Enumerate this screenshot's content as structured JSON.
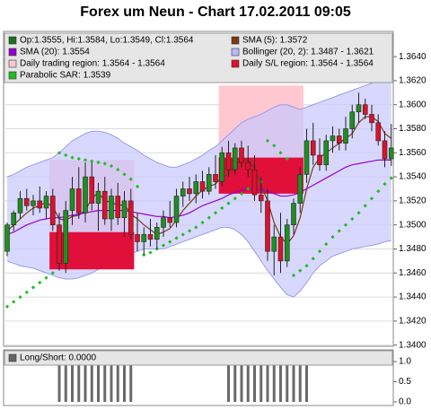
{
  "title": "Forex um Neun - Chart 17.02.2011 09:05",
  "chart_data": [
    {
      "type": "candlestick",
      "ylim": [
        1.3399,
        1.3661
      ],
      "yticks": [
        {
          "value": 1.34,
          "label": "1.3400"
        },
        {
          "value": 1.342,
          "label": "1.3420"
        },
        {
          "value": 1.344,
          "label": "1.3440"
        },
        {
          "value": 1.346,
          "label": "1.3460"
        },
        {
          "value": 1.348,
          "label": "1.3480"
        },
        {
          "value": 1.35,
          "label": "1.3500"
        },
        {
          "value": 1.352,
          "label": "1.3520"
        },
        {
          "value": 1.354,
          "label": "1.3540"
        },
        {
          "value": 1.356,
          "label": "1.3560"
        },
        {
          "value": 1.358,
          "label": "1.3580"
        },
        {
          "value": 1.36,
          "label": "1.3600"
        },
        {
          "value": 1.362,
          "label": "1.3620"
        },
        {
          "value": 1.364,
          "label": "1.3640"
        }
      ],
      "grid": true,
      "up_color": "#1f8f1f",
      "down_color": "#e0102a",
      "legend": [
        {
          "label": "Op:1.3555, Hi:1.3584, Lo:1.3549, Cl:1.3564",
          "color": "#1f6f1f"
        },
        {
          "label": "SMA (5): 1.3572",
          "color": "#7a3a10"
        },
        {
          "label": "SMA (20): 1.3554",
          "color": "#9900cc"
        },
        {
          "label": "Bollinger (20, 2): 1.3487 - 1.3621",
          "color": "#b8b8ff"
        },
        {
          "label": "Daily trading region: 1.3564 - 1.3564",
          "color": "#ffc8d0"
        },
        {
          "label": "Daily S/L region: 1.3564 - 1.3564",
          "color": "#e0102a"
        },
        {
          "label": "Parabolic SAR: 1.3539",
          "color": "#22bb22"
        }
      ],
      "open": [
        1.3478,
        1.35,
        1.351,
        1.3522,
        1.3516,
        1.352,
        1.3514,
        1.3524,
        1.35,
        1.3468,
        1.3512,
        1.353,
        1.351,
        1.354,
        1.3518,
        1.3528,
        1.3505,
        1.3524,
        1.3506,
        1.352,
        1.3492,
        1.3486,
        1.3492,
        1.3488,
        1.3498,
        1.3506,
        1.3502,
        1.3524,
        1.353,
        1.3526,
        1.3536,
        1.3528,
        1.3542,
        1.3536,
        1.356,
        1.3546,
        1.3564,
        1.3552,
        1.3546,
        1.3525,
        1.352,
        1.3478,
        1.349,
        1.347,
        1.35,
        1.3518,
        1.3542,
        1.357,
        1.3558,
        1.355,
        1.357,
        1.3574,
        1.3568,
        1.358,
        1.3594,
        1.36,
        1.3592,
        1.3585,
        1.357,
        1.3555
      ],
      "high": [
        1.3502,
        1.3512,
        1.3528,
        1.353,
        1.3525,
        1.3532,
        1.3528,
        1.353,
        1.351,
        1.352,
        1.354,
        1.3548,
        1.3552,
        1.3552,
        1.3535,
        1.354,
        1.353,
        1.3535,
        1.3528,
        1.353,
        1.351,
        1.3498,
        1.3505,
        1.3502,
        1.3512,
        1.352,
        1.353,
        1.3536,
        1.354,
        1.3542,
        1.3545,
        1.3548,
        1.3558,
        1.3565,
        1.357,
        1.3568,
        1.357,
        1.3566,
        1.3558,
        1.354,
        1.353,
        1.35,
        1.351,
        1.3505,
        1.3522,
        1.3548,
        1.358,
        1.3585,
        1.3572,
        1.3575,
        1.3582,
        1.358,
        1.359,
        1.36,
        1.361,
        1.3605,
        1.36,
        1.3592,
        1.3578,
        1.3584
      ],
      "low": [
        1.3474,
        1.3495,
        1.3505,
        1.3512,
        1.3508,
        1.351,
        1.3505,
        1.3495,
        1.3462,
        1.346,
        1.35,
        1.3505,
        1.3502,
        1.3512,
        1.3495,
        1.35,
        1.3495,
        1.35,
        1.349,
        1.3488,
        1.3478,
        1.3475,
        1.3482,
        1.348,
        1.349,
        1.3498,
        1.3498,
        1.3515,
        1.352,
        1.3518,
        1.3522,
        1.3525,
        1.353,
        1.3532,
        1.354,
        1.3542,
        1.3548,
        1.354,
        1.352,
        1.351,
        1.347,
        1.3458,
        1.346,
        1.3465,
        1.3492,
        1.351,
        1.3535,
        1.355,
        1.3545,
        1.3545,
        1.356,
        1.3562,
        1.3562,
        1.3572,
        1.3585,
        1.3588,
        1.3578,
        1.3566,
        1.3548,
        1.3549
      ],
      "close": [
        1.35,
        1.351,
        1.3522,
        1.3516,
        1.352,
        1.3514,
        1.3524,
        1.35,
        1.3468,
        1.3512,
        1.353,
        1.351,
        1.354,
        1.3518,
        1.3528,
        1.3505,
        1.3524,
        1.3506,
        1.352,
        1.3492,
        1.3486,
        1.3492,
        1.3488,
        1.3498,
        1.3506,
        1.3502,
        1.3524,
        1.353,
        1.3526,
        1.3536,
        1.3528,
        1.3542,
        1.3536,
        1.356,
        1.3546,
        1.3564,
        1.3552,
        1.3546,
        1.3525,
        1.352,
        1.3478,
        1.349,
        1.347,
        1.35,
        1.3518,
        1.3542,
        1.357,
        1.3558,
        1.355,
        1.357,
        1.3574,
        1.3568,
        1.358,
        1.3594,
        1.36,
        1.3592,
        1.3585,
        1.357,
        1.3555,
        1.3564
      ],
      "bollinger": {
        "color": "#c8c8ff",
        "edge": "#9a9aee",
        "upper": [
          1.354,
          1.3542,
          1.3545,
          1.3548,
          1.355,
          1.3552,
          1.3554,
          1.3556,
          1.356,
          1.3565,
          1.357,
          1.3573,
          1.3576,
          1.3578,
          1.3578,
          1.3577,
          1.3575,
          1.3572,
          1.3568,
          1.3565,
          1.3562,
          1.3558,
          1.3555,
          1.3552,
          1.355,
          1.3548,
          1.3548,
          1.355,
          1.3552,
          1.3555,
          1.3558,
          1.3562,
          1.3565,
          1.357,
          1.3575,
          1.358,
          1.3585,
          1.3588,
          1.359,
          1.3592,
          1.3595,
          1.3598,
          1.36,
          1.36,
          1.3598,
          1.3596,
          1.3598,
          1.36,
          1.3602,
          1.3604,
          1.3606,
          1.3608,
          1.361,
          1.3612,
          1.3614,
          1.3616,
          1.3618,
          1.362,
          1.3621,
          1.3621
        ],
        "lower": [
          1.347,
          1.3468,
          1.3466,
          1.3465,
          1.3464,
          1.3462,
          1.346,
          1.3458,
          1.3456,
          1.3455,
          1.3455,
          1.3456,
          1.3458,
          1.346,
          1.3463,
          1.3466,
          1.3469,
          1.3472,
          1.3474,
          1.3476,
          1.3478,
          1.348,
          1.348,
          1.348,
          1.348,
          1.3482,
          1.3484,
          1.3486,
          1.3488,
          1.349,
          1.3492,
          1.3494,
          1.3496,
          1.3498,
          1.3498,
          1.3496,
          1.3492,
          1.3486,
          1.3478,
          1.347,
          1.3462,
          1.3455,
          1.3448,
          1.3442,
          1.344,
          1.3445,
          1.3452,
          1.346,
          1.3466,
          1.347,
          1.3474,
          1.3476,
          1.3478,
          1.348,
          1.3481,
          1.3482,
          1.3483,
          1.3484,
          1.3486,
          1.3487
        ]
      },
      "lines": [
        {
          "color": "#7a3a10",
          "values": [
            1.3495,
            1.35,
            1.3505,
            1.351,
            1.3514,
            1.3516,
            1.3519,
            1.3515,
            1.3505,
            1.3504,
            1.3507,
            1.3508,
            1.3512,
            1.3522,
            1.3527,
            1.352,
            1.3519,
            1.3516,
            1.3517,
            1.3509,
            1.3505,
            1.35,
            1.3496,
            1.3492,
            1.3494,
            1.3497,
            1.3504,
            1.3512,
            1.3518,
            1.3524,
            1.3529,
            1.3532,
            1.3534,
            1.354,
            1.3542,
            1.355,
            1.3554,
            1.3554,
            1.3547,
            1.3533,
            1.352,
            1.3502,
            1.349,
            1.3484,
            1.3491,
            1.3506,
            1.353,
            1.3548,
            1.3556,
            1.356,
            1.3564,
            1.3568,
            1.3572,
            1.3576,
            1.3585,
            1.359,
            1.359,
            1.3586,
            1.3576,
            1.3572
          ]
        },
        {
          "color": "#9900cc",
          "values": [
            1.3492,
            1.3494,
            1.3497,
            1.35,
            1.3502,
            1.3504,
            1.3505,
            1.3506,
            1.3506,
            1.3507,
            1.3508,
            1.3509,
            1.351,
            1.3511,
            1.3512,
            1.3512,
            1.3512,
            1.3512,
            1.3512,
            1.3511,
            1.351,
            1.3509,
            1.3508,
            1.3507,
            1.3507,
            1.3506,
            1.3507,
            1.3508,
            1.351,
            1.3513,
            1.3516,
            1.3518,
            1.352,
            1.3522,
            1.3525,
            1.3527,
            1.3529,
            1.353,
            1.353,
            1.3529,
            1.3528,
            1.3526,
            1.3524,
            1.3524,
            1.3525,
            1.3527,
            1.353,
            1.3533,
            1.3536,
            1.3539,
            1.3542,
            1.3545,
            1.3548,
            1.355,
            1.3551,
            1.3552,
            1.3553,
            1.3554,
            1.3554,
            1.3554
          ]
        }
      ],
      "sar": {
        "color": "#22bb22",
        "values": [
          1.3432,
          1.3436,
          1.344,
          1.3444,
          1.3448,
          1.3452,
          1.3456,
          1.346,
          1.356,
          1.3558,
          1.3556,
          1.3555,
          1.3554,
          1.3553,
          1.3552,
          1.3551,
          1.3549,
          1.3546,
          1.3542,
          1.3538,
          1.3532,
          1.3475,
          1.3477,
          1.348,
          1.3483,
          1.3486,
          1.3489,
          1.3492,
          1.3495,
          1.3498,
          1.3502,
          1.3506,
          1.351,
          1.3514,
          1.3518,
          1.3522,
          1.3526,
          1.353,
          1.3533,
          1.3536,
          1.357,
          1.3566,
          1.356,
          1.3555,
          1.3458,
          1.3462,
          1.3466,
          1.3472,
          1.3478,
          1.3484,
          1.349,
          1.3495,
          1.35,
          1.3505,
          1.351,
          1.3516,
          1.3522,
          1.3528,
          1.3534,
          1.3539
        ]
      },
      "trading_regions": {
        "color": "#ffc8d0",
        "items": [
          {
            "start": 7,
            "end": 19,
            "low": 1.3485,
            "high": 1.3554
          },
          {
            "start": 33,
            "end": 45,
            "low": 1.3554,
            "high": 1.3616
          }
        ]
      },
      "sl_regions": {
        "color": "#e0103a",
        "items": [
          {
            "start": 7,
            "end": 19,
            "low": 1.3463,
            "high": 1.3494
          },
          {
            "start": 33,
            "end": 45,
            "low": 1.3526,
            "high": 1.3556
          }
        ]
      }
    },
    {
      "type": "bar",
      "legend": [
        {
          "label": "Long/Short: 0.0000",
          "color": "#666666"
        }
      ],
      "color": "#6a6a6a",
      "ylim": [
        -0.09,
        1.29
      ],
      "yticks": [
        {
          "value": 0,
          "label": "0.0"
        },
        {
          "value": 0.5,
          "label": "0.5"
        },
        {
          "value": 1,
          "label": "1.0"
        }
      ],
      "values": [
        0,
        0,
        0,
        0,
        0,
        0,
        0,
        0,
        1,
        1,
        1,
        1,
        1,
        1,
        1,
        1,
        1,
        1,
        1,
        1,
        0,
        0,
        0,
        0,
        0,
        0,
        0,
        0,
        0,
        0,
        0,
        0,
        0,
        0,
        1,
        1,
        1,
        1,
        1,
        1,
        1,
        1,
        1,
        1,
        1,
        1,
        1,
        0,
        0,
        0,
        0,
        0,
        0,
        0,
        0,
        0,
        0,
        0,
        0,
        0
      ]
    }
  ]
}
